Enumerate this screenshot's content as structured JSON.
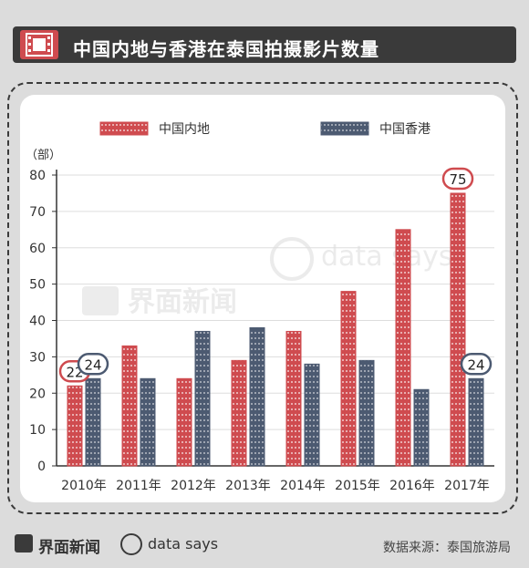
{
  "header": {
    "title": "中国内地与香港在泰国拍摄影片数量",
    "icon": "film-icon"
  },
  "footer": {
    "brand_a": "界面新闻",
    "brand_b": "data says",
    "source": "数据来源：泰国旅游局"
  },
  "watermark": {
    "brand_a": "界面新闻",
    "brand_b": "data says"
  },
  "colors": {
    "mainland": "#cf4b4f",
    "hongkong": "#4c5a71",
    "header_bg": "#3a3a3a"
  },
  "chart_data": {
    "type": "bar",
    "title": "中国内地与香港在泰国拍摄影片数量",
    "ylabel": "（部）",
    "ylim": [
      0,
      80
    ],
    "yticks": [
      "0",
      "10",
      "20",
      "30",
      "40",
      "50",
      "60",
      "70",
      "80"
    ],
    "categories": [
      "2010年",
      "2011年",
      "2012年",
      "2013年",
      "2014年",
      "2015年",
      "2016年",
      "2017年"
    ],
    "series": [
      {
        "name": "中国内地",
        "values": [
          22,
          33,
          24,
          29,
          37,
          48,
          65,
          75
        ]
      },
      {
        "name": "中国香港",
        "values": [
          24,
          24,
          37,
          38,
          28,
          29,
          21,
          24
        ]
      }
    ],
    "legend": "top",
    "callouts": [
      {
        "series": 0,
        "index": 0,
        "label": "22"
      },
      {
        "series": 1,
        "index": 0,
        "label": "24"
      },
      {
        "series": 0,
        "index": 7,
        "label": "75"
      },
      {
        "series": 1,
        "index": 7,
        "label": "24"
      }
    ]
  }
}
